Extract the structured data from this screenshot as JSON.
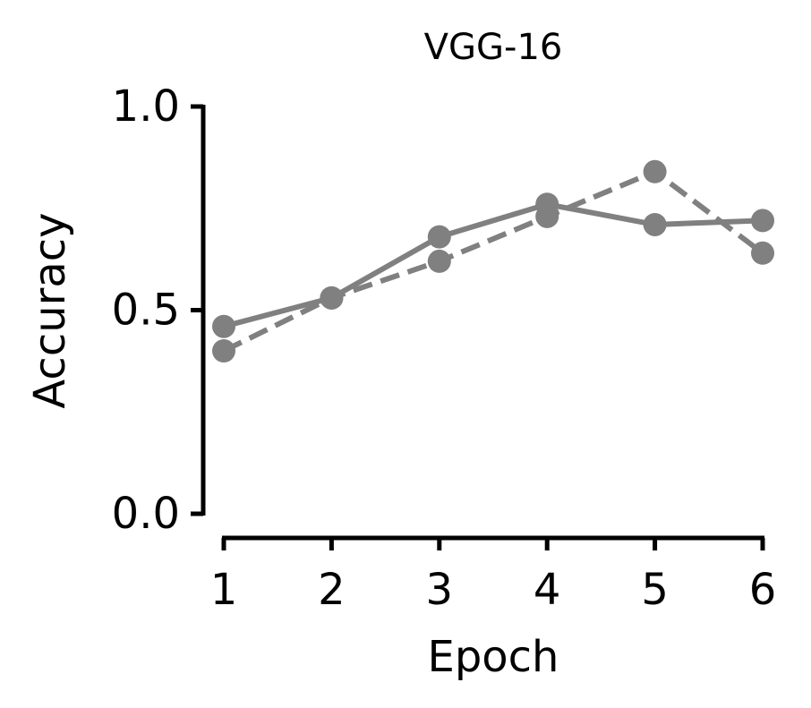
{
  "chart_data": {
    "type": "line",
    "title": "VGG-16",
    "xlabel": "Epoch",
    "ylabel": "Accuracy",
    "x": [
      1,
      2,
      3,
      4,
      5,
      6
    ],
    "x_ticks": [
      "1",
      "2",
      "3",
      "4",
      "5",
      "6"
    ],
    "y_ticks": [
      "0.0",
      "0.5",
      "1.0"
    ],
    "xlim": [
      1,
      6
    ],
    "ylim": [
      0,
      1
    ],
    "grid": false,
    "series": [
      {
        "style": "solid",
        "color": "#808080",
        "values": [
          0.46,
          0.53,
          0.68,
          0.76,
          0.71,
          0.72
        ]
      },
      {
        "style": "dashed",
        "color": "#808080",
        "values": [
          0.4,
          0.53,
          0.62,
          0.73,
          0.84,
          0.64
        ]
      }
    ]
  }
}
